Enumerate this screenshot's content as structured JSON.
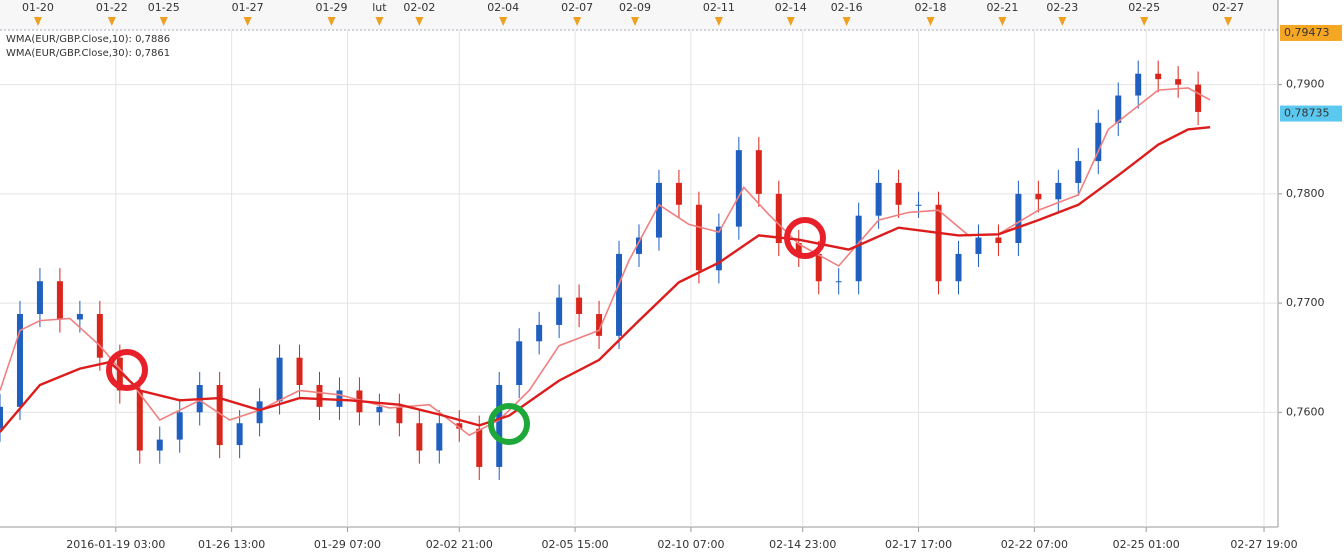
{
  "chart_data": {
    "type": "candlestick",
    "series": [
      {
        "name": "WMA(EUR/GBP.Close,10): 0,7886",
        "color": "#f08080",
        "x": [
          0,
          5,
          10,
          17.5,
          25,
          32.5,
          40,
          50,
          57.5,
          65,
          75,
          85,
          97.5,
          107.5,
          117.5,
          125,
          132.5,
          140,
          150,
          157.5,
          165,
          172.5,
          180,
          186.25,
          192.5,
          200,
          210,
          220,
          227.5,
          235,
          242.5,
          250,
          260,
          270,
          277.5,
          290,
          297.5,
          303
        ],
        "values": [
          0.762,
          0.7675,
          0.7684,
          0.7686,
          0.7661,
          0.7629,
          0.7593,
          0.7611,
          0.7593,
          0.7602,
          0.762,
          0.7616,
          0.7604,
          0.7607,
          0.7579,
          0.7593,
          0.762,
          0.7661,
          0.7675,
          0.7739,
          0.779,
          0.7772,
          0.7765,
          0.7806,
          0.7781,
          0.7754,
          0.7734,
          0.7776,
          0.7783,
          0.7785,
          0.7762,
          0.7763,
          0.7785,
          0.7799,
          0.7859,
          0.7895,
          0.7897,
          0.7886
        ]
      },
      {
        "name": "WMA(EUR/GBP.Close,30): 0,7861",
        "color": "#dd1c1c",
        "x": [
          0,
          10,
          20,
          27.5,
          35,
          45,
          55,
          65,
          75,
          87.5,
          100,
          110,
          120,
          127.5,
          140,
          150,
          160,
          170,
          180,
          190,
          200,
          212.5,
          225,
          240,
          250,
          260,
          270,
          280,
          290,
          297.5,
          303
        ],
        "values": [
          0.7582,
          0.7625,
          0.764,
          0.7646,
          0.762,
          0.7611,
          0.7613,
          0.7602,
          0.7613,
          0.7611,
          0.7607,
          0.7598,
          0.7588,
          0.7597,
          0.7629,
          0.7648,
          0.7684,
          0.7719,
          0.7737,
          0.7762,
          0.7758,
          0.7749,
          0.7769,
          0.7762,
          0.7763,
          0.7776,
          0.779,
          0.7817,
          0.7845,
          0.7859,
          0.7861
        ]
      }
    ],
    "candles": {
      "up_color": "#1f5fbf",
      "down_color": "#d9261c",
      "x": [
        0,
        5,
        10,
        15,
        20,
        25,
        30,
        35,
        40,
        45,
        50,
        55,
        60,
        65,
        70,
        75,
        80,
        85,
        90,
        95,
        100,
        105,
        110,
        115,
        120,
        125,
        130,
        135,
        140,
        145,
        150,
        155,
        160,
        165,
        170,
        175,
        180,
        185,
        190,
        195,
        200,
        205,
        210,
        215,
        220,
        225,
        230,
        235,
        240,
        245,
        250,
        255,
        260,
        265,
        270,
        275,
        280,
        285,
        290,
        295,
        300
      ],
      "open": [
        0.7585,
        0.7605,
        0.769,
        0.772,
        0.7685,
        0.769,
        0.765,
        0.762,
        0.7565,
        0.7575,
        0.76,
        0.7625,
        0.757,
        0.759,
        0.761,
        0.765,
        0.7625,
        0.7605,
        0.762,
        0.76,
        0.7605,
        0.759,
        0.7565,
        0.759,
        0.7585,
        0.755,
        0.7625,
        0.7665,
        0.768,
        0.7705,
        0.769,
        0.767,
        0.7745,
        0.776,
        0.781,
        0.779,
        0.773,
        0.777,
        0.784,
        0.78,
        0.7755,
        0.7745,
        0.772,
        0.772,
        0.778,
        0.781,
        0.779,
        0.779,
        0.772,
        0.7745,
        0.776,
        0.7755,
        0.78,
        0.7795,
        0.781,
        0.783,
        0.7865,
        0.789,
        0.791,
        0.7905,
        0.79
      ],
      "high": [
        0.7617,
        0.7702,
        0.7732,
        0.7732,
        0.7702,
        0.7702,
        0.7662,
        0.7632,
        0.7587,
        0.7612,
        0.7637,
        0.7637,
        0.7602,
        0.7622,
        0.7662,
        0.7662,
        0.7637,
        0.7632,
        0.7632,
        0.7617,
        0.7617,
        0.7602,
        0.7602,
        0.7602,
        0.7597,
        0.7637,
        0.7677,
        0.7692,
        0.7717,
        0.7717,
        0.7702,
        0.7757,
        0.7772,
        0.7822,
        0.7822,
        0.7802,
        0.7782,
        0.7852,
        0.7852,
        0.7812,
        0.7767,
        0.7757,
        0.7732,
        0.7792,
        0.7822,
        0.7822,
        0.7802,
        0.7802,
        0.7757,
        0.7772,
        0.7772,
        0.7812,
        0.7812,
        0.7822,
        0.7842,
        0.7877,
        0.7902,
        0.7922,
        0.7922,
        0.7917,
        0.7912
      ],
      "low": [
        0.7573,
        0.7593,
        0.7678,
        0.7673,
        0.7673,
        0.7638,
        0.7608,
        0.7553,
        0.7553,
        0.7563,
        0.7588,
        0.7558,
        0.7558,
        0.7578,
        0.7598,
        0.7613,
        0.7593,
        0.7593,
        0.7588,
        0.7588,
        0.7578,
        0.7553,
        0.7553,
        0.7573,
        0.7538,
        0.7538,
        0.7613,
        0.7653,
        0.7668,
        0.7678,
        0.7658,
        0.7658,
        0.7733,
        0.7748,
        0.7778,
        0.7718,
        0.7718,
        0.7758,
        0.7788,
        0.7743,
        0.7733,
        0.7708,
        0.7708,
        0.7708,
        0.7768,
        0.7778,
        0.7778,
        0.7708,
        0.7708,
        0.7733,
        0.7743,
        0.7743,
        0.7783,
        0.7783,
        0.7798,
        0.7818,
        0.7853,
        0.7878,
        0.7893,
        0.7888,
        0.7863
      ],
      "close": [
        0.7605,
        0.769,
        0.772,
        0.7685,
        0.769,
        0.765,
        0.762,
        0.7565,
        0.7575,
        0.76,
        0.7625,
        0.757,
        0.759,
        0.761,
        0.765,
        0.7625,
        0.7605,
        0.762,
        0.76,
        0.7605,
        0.759,
        0.7565,
        0.759,
        0.7585,
        0.755,
        0.7625,
        0.7665,
        0.768,
        0.7705,
        0.769,
        0.767,
        0.7745,
        0.776,
        0.781,
        0.779,
        0.773,
        0.777,
        0.784,
        0.78,
        0.7755,
        0.7745,
        0.772,
        0.772,
        0.778,
        0.781,
        0.779,
        0.779,
        0.772,
        0.7745,
        0.776,
        0.7755,
        0.78,
        0.7795,
        0.781,
        0.783,
        0.7865,
        0.789,
        0.791,
        0.7905,
        0.79,
        0.7875
      ]
    },
    "xlim": [
      0,
      320
    ],
    "ylim": [
      0.7495,
      0.795
    ],
    "yticks": [
      {
        "value": 0.76,
        "label": "0,7600"
      },
      {
        "value": 0.77,
        "label": "0,7700"
      },
      {
        "value": 0.78,
        "label": "0,7800"
      },
      {
        "value": 0.79,
        "label": "0,7900"
      }
    ],
    "xticks": [
      {
        "value": 29,
        "label": "2016-01-19 03:00"
      },
      {
        "value": 58,
        "label": "01-26 13:00"
      },
      {
        "value": 87,
        "label": "01-29 07:00"
      },
      {
        "value": 115,
        "label": "02-02 21:00"
      },
      {
        "value": 144,
        "label": "02-05 15:00"
      },
      {
        "value": 173,
        "label": "02-10 07:00"
      },
      {
        "value": 201,
        "label": "02-14 23:00"
      },
      {
        "value": 230,
        "label": "02-17 17:00"
      },
      {
        "value": 259,
        "label": "02-22 07:00"
      },
      {
        "value": 287,
        "label": "02-25 01:00"
      },
      {
        "value": 316.5,
        "label": "02-27 19:00"
      }
    ],
    "x2ticks": [
      {
        "value": 9.5,
        "label": "01-20"
      },
      {
        "value": 28,
        "label": "01-22"
      },
      {
        "value": 41,
        "label": "01-25"
      },
      {
        "value": 62,
        "label": "01-27"
      },
      {
        "value": 83,
        "label": "01-29"
      },
      {
        "value": 95,
        "label": "lut"
      },
      {
        "value": 105,
        "label": "02-02"
      },
      {
        "value": 126,
        "label": "02-04"
      },
      {
        "value": 144.5,
        "label": "02-07"
      },
      {
        "value": 159,
        "label": "02-09"
      },
      {
        "value": 180,
        "label": "02-11"
      },
      {
        "value": 198,
        "label": "02-14"
      },
      {
        "value": 212,
        "label": "02-16"
      },
      {
        "value": 233,
        "label": "02-18"
      },
      {
        "value": 251,
        "label": "02-21"
      },
      {
        "value": 266,
        "label": "02-23"
      },
      {
        "value": 286.5,
        "label": "02-25"
      },
      {
        "value": 307.5,
        "label": "02-27"
      }
    ],
    "price_tags": [
      {
        "value": 0.79473,
        "label": "0,79473",
        "color": "#f5a623"
      },
      {
        "value": 0.78735,
        "label": "0,78735",
        "color": "#5bc8f0"
      }
    ],
    "grid": true
  }
}
